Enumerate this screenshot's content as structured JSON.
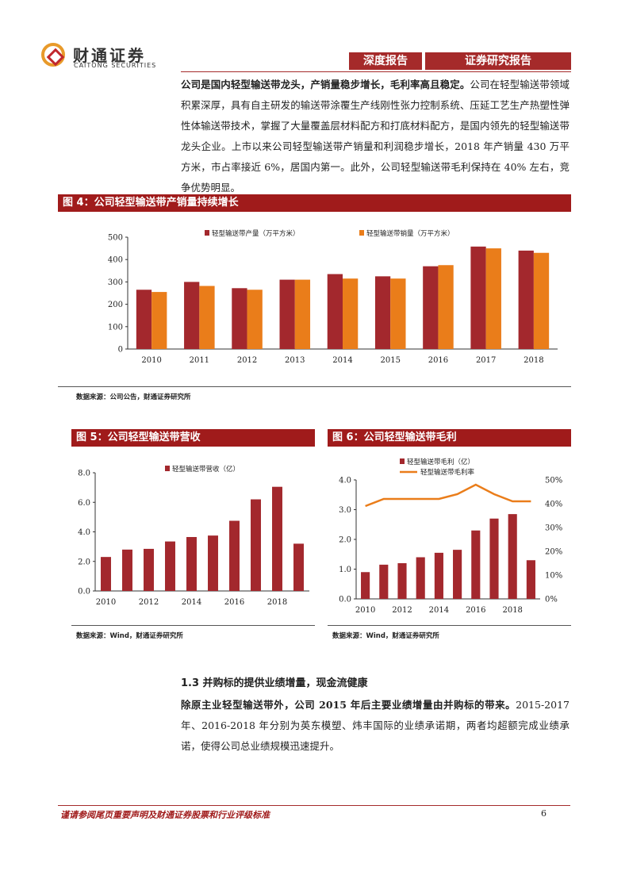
{
  "header": {
    "logo_cn": "财通证券",
    "logo_en": "CAITONG SECURITIES",
    "tag_left": "深度报告",
    "tag_right": "证券研究报告"
  },
  "para1": {
    "bold": "公司是国内轻型输送带龙头，产销量稳步增长，毛利率高且稳定。",
    "text": "公司在轻型输送带领域积累深厚，具有自主研发的输送带涂覆生产线刚性张力控制系统、压延工艺生产热塑性弹性体输送带技术，掌握了大量覆盖层材料配方和打底材料配方，是国内领先的轻型输送带龙头企业。上市以来公司轻型输送带产销量和利润稳步增长，2018 年产销量 430 万平方米，市占率接近 6%，居国内第一。此外，公司轻型输送带毛利保持在 40% 左右，竞争优势明显。"
  },
  "fig4": {
    "title": "图 4：公司轻型输送带产销量持续增长",
    "source": "数据来源：公司公告，财通证券研究所"
  },
  "fig5": {
    "title": "图 5：公司轻型输送带营收",
    "source": "数据来源：Wind，财通证券研究所"
  },
  "fig6": {
    "title": "图 6：公司轻型输送带毛利",
    "source": "数据来源：Wind，财通证券研究所"
  },
  "section": {
    "heading": "1.3  并购标的提供业绩增量，现金流健康",
    "bold": "除原主业轻型输送带外，公司 2015 年后主要业绩增量由并购标的带来。",
    "text": "2015-2017 年、2016-2018 年分别为英东模塑、炜丰国际的业绩承诺期，两者均超额完成业绩承诺，使得公司总业绩规模迅速提升。"
  },
  "footer": {
    "disclaimer": "谨请参阅尾页重要声明及财通证券股票和行业评级标准",
    "page": "6"
  },
  "colors": {
    "brand": "#a52a2a",
    "bar_dark": "#a3282d",
    "bar_orange": "#ea7d1a"
  },
  "chart_data": [
    {
      "type": "bar",
      "categories": [
        "2010",
        "2011",
        "2012",
        "2013",
        "2014",
        "2015",
        "2016",
        "2017",
        "2018"
      ],
      "series": [
        {
          "name": "轻型输送带产量（万平方米）",
          "values": [
            265,
            300,
            272,
            310,
            335,
            325,
            370,
            458,
            440
          ]
        },
        {
          "name": "轻型输送带销量（万平方米）",
          "values": [
            255,
            282,
            265,
            310,
            315,
            315,
            375,
            450,
            430
          ]
        }
      ],
      "ylim": [
        0,
        500
      ],
      "yticks": [
        "0",
        "100",
        "200",
        "300",
        "400",
        "500"
      ],
      "legend": "top"
    },
    {
      "type": "bar",
      "categories": [
        "2010",
        "2011",
        "2012",
        "2013",
        "2014",
        "2015",
        "2016",
        "2017",
        "2018",
        "2019"
      ],
      "x_tick_labels": [
        "2010",
        "2012",
        "2014",
        "2016",
        "2018"
      ],
      "series": [
        {
          "name": "轻型输送带营收（亿）",
          "values": [
            2.3,
            2.8,
            2.85,
            3.35,
            3.65,
            3.75,
            4.75,
            6.2,
            7.05,
            3.2
          ]
        }
      ],
      "ylim": [
        0,
        8
      ],
      "yticks": [
        "0.0",
        "2.0",
        "4.0",
        "6.0",
        "8.0"
      ],
      "legend": "top"
    },
    {
      "type": "bar",
      "categories": [
        "2010",
        "2011",
        "2012",
        "2013",
        "2014",
        "2015",
        "2016",
        "2017",
        "2018",
        "2019"
      ],
      "x_tick_labels": [
        "2010",
        "2012",
        "2014",
        "2016",
        "2018"
      ],
      "series": [
        {
          "name": "轻型输送带毛利（亿）",
          "type": "bar",
          "axis": "left",
          "values": [
            0.9,
            1.15,
            1.2,
            1.4,
            1.55,
            1.65,
            2.3,
            2.7,
            2.85,
            1.3
          ]
        },
        {
          "name": "轻型输送带毛利率",
          "type": "line",
          "axis": "right",
          "values": [
            39,
            42,
            42,
            42,
            42,
            44,
            48,
            44,
            41,
            41
          ]
        }
      ],
      "ylim": [
        0,
        4
      ],
      "yticks": [
        "0.0",
        "1.0",
        "2.0",
        "3.0",
        "4.0"
      ],
      "y2lim": [
        0,
        50
      ],
      "y2ticks": [
        "0%",
        "10%",
        "20%",
        "30%",
        "40%",
        "50%"
      ],
      "legend": "top"
    }
  ]
}
